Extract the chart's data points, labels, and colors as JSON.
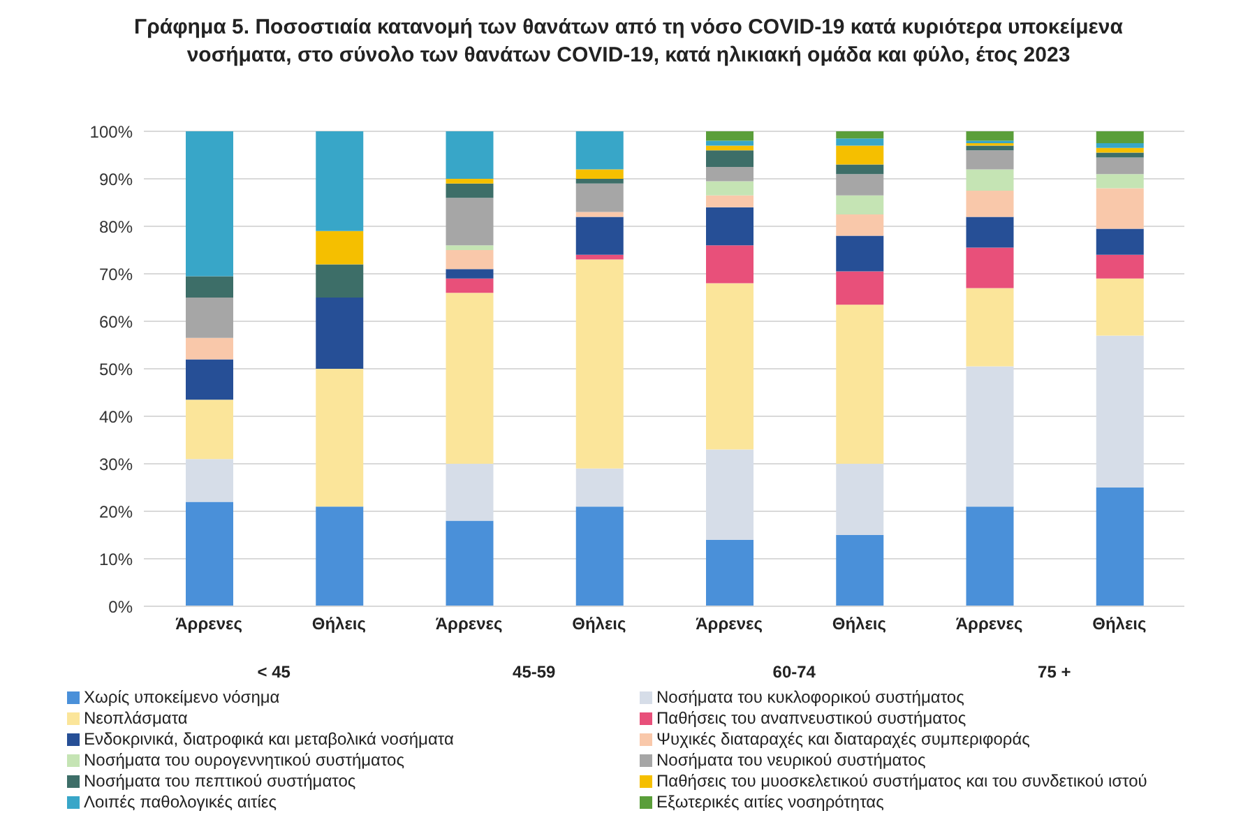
{
  "chart_data": {
    "type": "bar",
    "stacked": true,
    "title": "Γράφημα 5. Ποσοστιαία κατανομή των θανάτων από τη νόσο COVID-19 κατά κυριότερα υποκείμενα νοσήματα, στο σύνολο των θανάτων COVID-19, κατά ηλικιακή ομάδα και φύλο, έτος 2023",
    "categories": [
      "Άρρενες",
      "Θήλεις",
      "Άρρενες",
      "Θήλεις",
      "Άρρενες",
      "Θήλεις",
      "Άρρενες",
      "Θήλεις"
    ],
    "annotations": [
      "< 45",
      "45-59",
      "60-74",
      "75 +"
    ],
    "ylim": [
      0,
      100
    ],
    "yticks": [
      {
        "value": 0,
        "label": "0%"
      },
      {
        "value": 10,
        "label": "10%"
      },
      {
        "value": 20,
        "label": "20%"
      },
      {
        "value": 30,
        "label": "30%"
      },
      {
        "value": 40,
        "label": "40%"
      },
      {
        "value": 50,
        "label": "50%"
      },
      {
        "value": 60,
        "label": "60%"
      },
      {
        "value": 70,
        "label": "70%"
      },
      {
        "value": 80,
        "label": "80%"
      },
      {
        "value": 90,
        "label": "90%"
      },
      {
        "value": 100,
        "label": "100%"
      }
    ],
    "grid": "y",
    "legend": "bottom",
    "series": [
      {
        "name": "Χωρίς υποκείμενο νόσημα",
        "color": "#4a90d9",
        "values": [
          22,
          21,
          18,
          21,
          14,
          15,
          21,
          25
        ]
      },
      {
        "name": "Νοσήματα του κυκλοφορικού συστήματος",
        "color": "#d6dde8",
        "values": [
          9,
          0,
          12,
          8,
          19,
          15,
          29.5,
          32
        ]
      },
      {
        "name": "Νεοπλάσματα",
        "color": "#fbe59a",
        "values": [
          12.5,
          29,
          36,
          44,
          35,
          33.5,
          16.5,
          12
        ]
      },
      {
        "name": "Παθήσεις του αναπνευστικού συστήματος",
        "color": "#e8507a",
        "values": [
          0,
          0,
          3,
          1,
          8,
          7,
          8.5,
          5
        ]
      },
      {
        "name": "Ενδοκρινικά, διατροφικά και μεταβολικά νοσήματα",
        "color": "#264f96",
        "values": [
          8.5,
          15,
          2,
          8,
          8,
          7.5,
          6.5,
          5.5
        ]
      },
      {
        "name": "Ψυχικές διαταραχές και διαταραχές συμπεριφοράς",
        "color": "#f9c8aa",
        "values": [
          4.5,
          0,
          4,
          1,
          2.5,
          4.5,
          5.5,
          8.5
        ]
      },
      {
        "name": "Νοσήματα του ουρογεννητικού συστήματος",
        "color": "#c5e4b4",
        "values": [
          0,
          0,
          1,
          0,
          3,
          4,
          4.5,
          3
        ]
      },
      {
        "name": "Νοσήματα του νευρικού συστήματος",
        "color": "#a6a6a6",
        "values": [
          8.5,
          0,
          10,
          6,
          3,
          4.5,
          4,
          3.5
        ]
      },
      {
        "name": "Νοσήματα του πεπτικού συστήματος",
        "color": "#3d6e68",
        "values": [
          4.5,
          7,
          3,
          1,
          3.5,
          2,
          1,
          1
        ]
      },
      {
        "name": "Παθήσεις του μυοσκελετικού συστήματος και του συνδετικού ιστού",
        "color": "#f5bf00",
        "values": [
          0,
          7,
          1,
          2,
          1,
          4,
          0.5,
          1
        ]
      },
      {
        "name": "Λοιπές παθολογικές αιτίες",
        "color": "#38a6c8",
        "values": [
          30.5,
          21,
          10,
          8,
          1,
          1.5,
          0.5,
          1
        ]
      },
      {
        "name": "Εξωτερικές αιτίες νοσηρότητας",
        "color": "#5a9e3a",
        "values": [
          0,
          0,
          0,
          0,
          2,
          1.5,
          2,
          2.5
        ]
      }
    ]
  }
}
